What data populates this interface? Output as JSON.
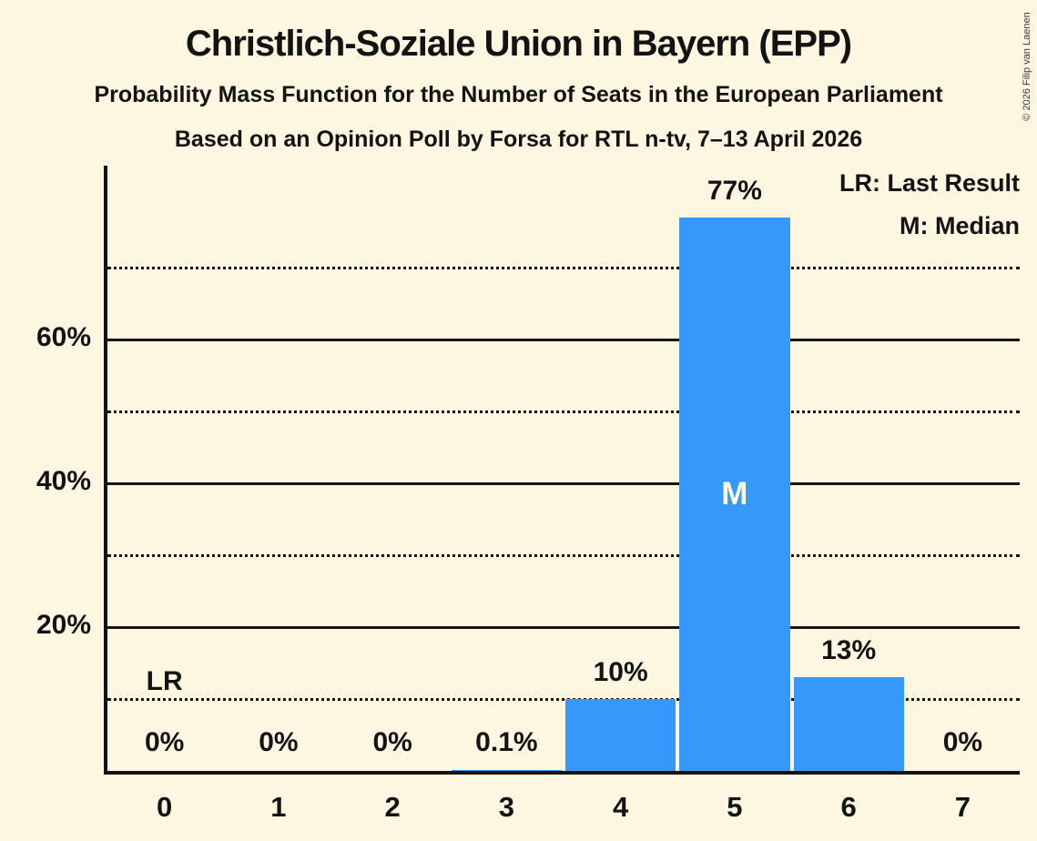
{
  "chart_data": {
    "type": "bar",
    "title": "Christlich-Soziale Union in Bayern (EPP)",
    "subtitle": "Probability Mass Function for the Number of Seats in the European Parliament",
    "subtitle2": "Based on an Opinion Poll by Forsa for RTL n-tv, 7–13 April 2026",
    "categories": [
      "0",
      "1",
      "2",
      "3",
      "4",
      "5",
      "6",
      "7"
    ],
    "values": [
      0,
      0,
      0,
      0.1,
      10,
      77,
      13,
      0
    ],
    "bar_labels": [
      "0%",
      "0%",
      "0%",
      "0.1%",
      "10%",
      "77%",
      "13%",
      "0%"
    ],
    "median_marker": "M",
    "median_seat": "5",
    "last_result_marker": "LR",
    "last_result_seat": "0",
    "legend": [
      "LR: Last Result",
      "M: Median"
    ],
    "y_axis": {
      "solid_ticks": [
        20,
        40,
        60
      ],
      "dotted_ticks": [
        10,
        30,
        50,
        70
      ],
      "tick_suffix": "%",
      "max": 84,
      "grid": "on"
    },
    "legend_position": "top-right",
    "colors": {
      "bar": "#3598FA",
      "background": "#FDF7E1",
      "text": "#131313",
      "median_label": "#FDF7E1"
    },
    "copyright": "© 2026 Filip van Laenen"
  }
}
